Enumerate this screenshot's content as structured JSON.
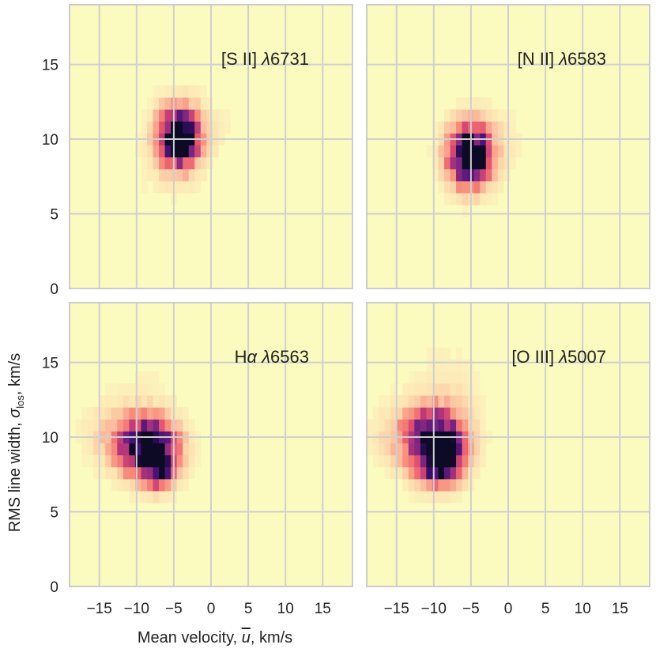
{
  "chart_data": {
    "type": "heatmap",
    "shared": {
      "xlabel_parts": [
        "Mean velocity, ",
        "u",
        ", km/s"
      ],
      "ylabel_parts": [
        "RMS line width, ",
        "σ",
        "los",
        ", km/s"
      ],
      "xlim": [
        -19,
        19
      ],
      "ylim": [
        0,
        19
      ],
      "xticks": [
        -15,
        -10,
        -5,
        0,
        5,
        10,
        15
      ],
      "xtick_labels": [
        "−15",
        "−10",
        "−5",
        "0",
        "5",
        "10",
        "15"
      ],
      "yticks": [
        0,
        5,
        10,
        15
      ],
      "ytick_labels": [
        "0",
        "5",
        "10",
        "15"
      ],
      "background_color": "#fbfbc0",
      "colormap": [
        "#fbfbc0",
        "#fde6b4",
        "#fcc0a0",
        "#f78a7a",
        "#e8566e",
        "#b73779",
        "#7a2484",
        "#3f0f72",
        "#0d0a26"
      ],
      "bin_size": 0.8
    },
    "panels": [
      {
        "label_parts": [
          "[S II] ",
          "λ",
          "6731"
        ],
        "blobs": [
          {
            "cx": -4.4,
            "cy": 10.1,
            "sx": 2.0,
            "sy": 1.5,
            "amp": 1.0
          },
          {
            "cx": -3.6,
            "cy": 9.9,
            "sx": 0.9,
            "sy": 0.7,
            "amp": 0.6
          },
          {
            "cx": -1.5,
            "cy": 10.6,
            "sx": 3.8,
            "sy": 1.6,
            "amp": 0.08
          },
          {
            "cx": -10.0,
            "cy": 6.5,
            "sx": 5.0,
            "sy": 2.5,
            "amp": 0.04
          }
        ]
      },
      {
        "label_parts": [
          "[N II] ",
          "λ",
          "6583"
        ],
        "blobs": [
          {
            "cx": -5.2,
            "cy": 8.9,
            "sx": 2.1,
            "sy": 1.5,
            "amp": 1.0
          },
          {
            "cx": -4.6,
            "cy": 8.8,
            "sx": 1.0,
            "sy": 0.7,
            "amp": 0.55
          },
          {
            "cx": -2.5,
            "cy": 9.8,
            "sx": 3.5,
            "sy": 1.7,
            "amp": 0.1
          }
        ]
      },
      {
        "label_parts": [
          "H",
          "α",
          " ",
          "λ",
          "6563"
        ],
        "blobs": [
          {
            "cx": -8.0,
            "cy": 9.1,
            "sx": 2.6,
            "sy": 1.4,
            "amp": 1.0
          },
          {
            "cx": -8.0,
            "cy": 8.8,
            "sx": 0.9,
            "sy": 0.6,
            "amp": 0.7
          },
          {
            "cx": -6.6,
            "cy": 7.6,
            "sx": 0.9,
            "sy": 0.8,
            "amp": 0.45
          },
          {
            "cx": -11.5,
            "cy": 10.0,
            "sx": 3.4,
            "sy": 1.4,
            "amp": 0.28
          },
          {
            "cx": -9.5,
            "cy": 13.5,
            "sx": 4.5,
            "sy": 3.0,
            "amp": 0.05
          }
        ]
      },
      {
        "label_parts": [
          "[O III] ",
          "λ",
          "5007"
        ],
        "blobs": [
          {
            "cx": -9.5,
            "cy": 9.4,
            "sx": 2.6,
            "sy": 1.6,
            "amp": 1.0
          },
          {
            "cx": -9.5,
            "cy": 8.6,
            "sx": 0.9,
            "sy": 0.9,
            "amp": 0.7
          },
          {
            "cx": -7.6,
            "cy": 8.0,
            "sx": 0.9,
            "sy": 0.8,
            "amp": 0.4
          },
          {
            "cx": -12.5,
            "cy": 10.2,
            "sx": 3.8,
            "sy": 1.5,
            "amp": 0.25
          },
          {
            "cx": -8.0,
            "cy": 13.5,
            "sx": 4.0,
            "sy": 2.5,
            "amp": 0.08
          }
        ]
      }
    ]
  }
}
